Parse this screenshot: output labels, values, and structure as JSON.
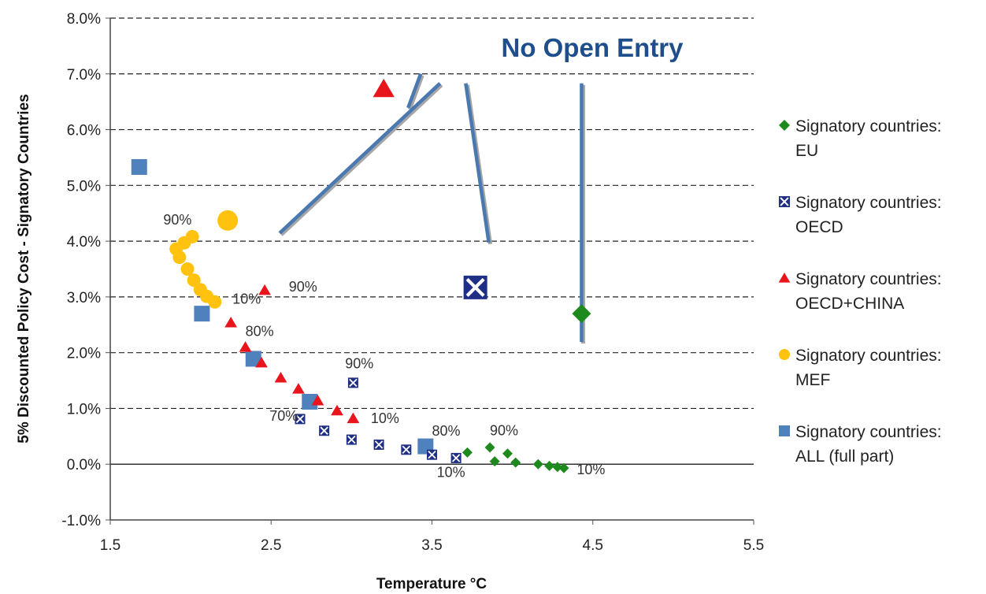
{
  "chart_data": {
    "type": "scatter",
    "xlabel": "Temperature   °C",
    "ylabel": "5% Discounted Policy Cost - Signatory Countries",
    "xlim": [
      1.5,
      5.5
    ],
    "ylim": [
      -1.0,
      8.0
    ],
    "x_ticks": [
      "1.5",
      "2.5",
      "3.5",
      "4.5",
      "5.5"
    ],
    "x_tick_values": [
      1.5,
      2.5,
      3.5,
      4.5,
      5.5
    ],
    "y_ticks": [
      "-1.0%",
      "0.0%",
      "1.0%",
      "2.0%",
      "3.0%",
      "4.0%",
      "5.0%",
      "6.0%",
      "7.0%",
      "8.0%"
    ],
    "y_tick_values": [
      -1,
      0,
      1,
      2,
      3,
      4,
      5,
      6,
      7,
      8
    ],
    "grid": "horizontal-dashed",
    "legend_position": "right",
    "callout": {
      "text": "No Open Entry",
      "color": "#1f4e8c"
    },
    "series": [
      {
        "name": "Signatory countries: EU",
        "legend_lines": [
          "Signatory countries:",
          "EU"
        ],
        "marker": "diamond",
        "color": "#1e8a1e",
        "points": [
          [
            3.72,
            0.21
          ],
          [
            3.86,
            0.3
          ],
          [
            3.89,
            0.05
          ],
          [
            3.97,
            0.19
          ],
          [
            4.02,
            0.03
          ],
          [
            4.16,
            0.0
          ],
          [
            4.23,
            -0.03
          ],
          [
            4.28,
            -0.05
          ],
          [
            4.32,
            -0.07
          ]
        ],
        "open_entry": [
          4.43,
          2.7
        ]
      },
      {
        "name": "Signatory countries: OECD",
        "legend_lines": [
          "Signatory countries:",
          "OECD"
        ],
        "marker": "xsquare",
        "color": "#1f2f86",
        "points": [
          [
            3.01,
            1.46
          ],
          [
            2.68,
            0.81
          ],
          [
            2.83,
            0.6
          ],
          [
            3.0,
            0.44
          ],
          [
            3.17,
            0.35
          ],
          [
            3.34,
            0.26
          ],
          [
            3.5,
            0.17
          ],
          [
            3.65,
            0.11
          ]
        ],
        "open_entry": [
          3.77,
          3.17
        ]
      },
      {
        "name": "Signatory countries: OECD+CHINA",
        "legend_lines": [
          "Signatory countries:",
          "OECD+CHINA"
        ],
        "marker": "triangle",
        "color": "#e8161c",
        "points": [
          [
            2.46,
            3.12
          ],
          [
            2.25,
            2.54
          ],
          [
            2.34,
            2.1
          ],
          [
            2.44,
            1.82
          ],
          [
            2.56,
            1.55
          ],
          [
            2.67,
            1.35
          ],
          [
            2.79,
            1.14
          ],
          [
            2.91,
            0.96
          ],
          [
            3.01,
            0.82
          ]
        ],
        "open_entry": [
          3.2,
          6.73
        ]
      },
      {
        "name": "Signatory countries: MEF",
        "legend_lines": [
          "Signatory countries:",
          "MEF"
        ],
        "marker": "circle",
        "color": "#ffc20e",
        "points": [
          [
            2.01,
            4.08
          ],
          [
            1.96,
            3.97
          ],
          [
            1.91,
            3.86
          ],
          [
            1.93,
            3.71
          ],
          [
            1.98,
            3.5
          ],
          [
            2.02,
            3.3
          ],
          [
            2.06,
            3.13
          ],
          [
            2.1,
            3.01
          ],
          [
            2.15,
            2.91
          ]
        ],
        "open_entry": [
          2.23,
          4.37
        ]
      },
      {
        "name": "Signatory countries: ALL (full part)",
        "legend_lines": [
          "Signatory countries:",
          "ALL (full part)"
        ],
        "marker": "square",
        "color": "#4f81bd",
        "points": [
          [
            1.68,
            5.33
          ],
          [
            2.07,
            2.7
          ],
          [
            2.39,
            1.89
          ],
          [
            2.74,
            1.12
          ],
          [
            3.46,
            0.32
          ]
        ],
        "open_entry": null
      }
    ],
    "point_labels": [
      {
        "text": "90%",
        "x": 1.83,
        "y": 4.3
      },
      {
        "text": "10%",
        "x": 2.26,
        "y": 2.88
      },
      {
        "text": "90%",
        "x": 2.61,
        "y": 3.1
      },
      {
        "text": "80%",
        "x": 2.34,
        "y": 2.3
      },
      {
        "text": "90%",
        "x": 2.96,
        "y": 1.72
      },
      {
        "text": "70%",
        "x": 2.49,
        "y": 0.78
      },
      {
        "text": "10%",
        "x": 3.12,
        "y": 0.74
      },
      {
        "text": "80%",
        "x": 3.5,
        "y": 0.51
      },
      {
        "text": "90%",
        "x": 3.86,
        "y": 0.52
      },
      {
        "text": "10%",
        "x": 3.53,
        "y": -0.23
      },
      {
        "text": "10%",
        "x": 4.4,
        "y": -0.18
      }
    ]
  }
}
